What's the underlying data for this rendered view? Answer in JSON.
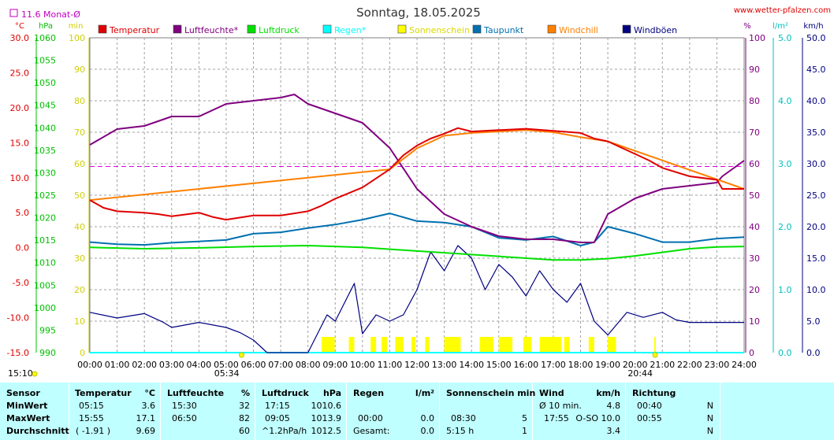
{
  "header": {
    "title": "Sonntag, 18.05.2025",
    "website": "www.wetter-pfalzen.com",
    "monthly_avg_label": "11.6 Monat-Ø"
  },
  "axes": {
    "left_units": [
      "°C",
      "hPa",
      "min"
    ],
    "right_units": [
      "%",
      "l/m²",
      "km/h"
    ],
    "temp_ticks": [
      "30.0",
      "25.0",
      "20.0",
      "15.0",
      "10.0",
      "5.0",
      "0.0",
      "-5.0",
      "-10.0",
      "-15.0"
    ],
    "pressure_ticks": [
      "1060",
      "1055",
      "1050",
      "1045",
      "1040",
      "1035",
      "1030",
      "1025",
      "1020",
      "1015",
      "1010",
      "1005",
      "1000",
      "995",
      "990"
    ],
    "min_ticks": [
      "100",
      "90",
      "80",
      "70",
      "60",
      "50",
      "40",
      "30",
      "20",
      "10",
      "0"
    ],
    "pct_ticks": [
      "100",
      "90",
      "80",
      "70",
      "60",
      "50",
      "40",
      "30",
      "20",
      "10",
      "0"
    ],
    "rain_ticks": [
      "5.0",
      "4.0",
      "3.0",
      "2.0",
      "1.0",
      "0.0"
    ],
    "wind_ticks": [
      "50.0",
      "45.0",
      "40.0",
      "35.0",
      "30.0",
      "25.0",
      "20.0",
      "15.0",
      "10.0",
      "5.0",
      "0.0"
    ],
    "time_ticks": [
      "00:00",
      "01:00",
      "02:00",
      "03:00",
      "04:00",
      "05:00",
      "06:00",
      "07:00",
      "08:00",
      "09:00",
      "10:00",
      "11:00",
      "12:00",
      "13:00",
      "14:00",
      "15:00",
      "16:00",
      "17:00",
      "18:00",
      "19:00",
      "20:00",
      "21:00",
      "22:00",
      "23:00",
      "24:00"
    ],
    "sunrise": "05:34",
    "sunset": "20:44",
    "current_time": "15:10"
  },
  "legend": [
    {
      "label": "Temperatur",
      "color": "#e00000"
    },
    {
      "label": "Luftfeuchte*",
      "color": "#800080"
    },
    {
      "label": "Luftdruck",
      "color": "#00e000"
    },
    {
      "label": "Regen*",
      "color": "#00ffff"
    },
    {
      "label": "Sonnenschein",
      "color": "#ffff00"
    },
    {
      "label": "Taupunkt",
      "color": "#0070b0"
    },
    {
      "label": "Windchill",
      "color": "#ff8000"
    },
    {
      "label": "Windböen",
      "color": "#000080"
    }
  ],
  "chart_data": {
    "type": "line",
    "x_unit": "hour",
    "monthly_avg_temp": 11.6,
    "series": [
      {
        "name": "Temperatur",
        "unit": "°C",
        "x": [
          0,
          0.5,
          1,
          2,
          2.5,
          3,
          4,
          4.5,
          5,
          6,
          7,
          8,
          8.5,
          9,
          10,
          11,
          11.5,
          12,
          12.5,
          13,
          13.5,
          14,
          15,
          16,
          17,
          18,
          18.5,
          19,
          20,
          20.5,
          21,
          22,
          23,
          23.2,
          24
        ],
        "values": [
          6.8,
          5.7,
          5.2,
          5,
          4.8,
          4.5,
          5,
          4.4,
          4,
          4.6,
          4.6,
          5.2,
          6,
          7,
          8.6,
          11.2,
          13.2,
          14.6,
          15.6,
          16.3,
          17.1,
          16.6,
          16.8,
          17,
          16.7,
          16.4,
          15.6,
          15.2,
          13.4,
          12.5,
          11.4,
          10.2,
          9.7,
          8.4,
          8.4
        ]
      },
      {
        "name": "Luftfeuchte*",
        "unit": "%",
        "x": [
          0,
          1,
          2,
          3,
          4,
          5,
          6,
          7,
          7.5,
          8,
          9,
          10,
          11,
          12,
          13,
          14,
          15,
          16,
          17,
          18,
          18.5,
          19,
          20,
          21,
          22,
          23,
          23.2,
          24
        ],
        "values": [
          66,
          71,
          72,
          75,
          75,
          79,
          80,
          81,
          82,
          79,
          76,
          73,
          65,
          52,
          44,
          40,
          37,
          36,
          36,
          35,
          35,
          44,
          49,
          52,
          53,
          54,
          56,
          61
        ]
      },
      {
        "name": "Luftdruck",
        "unit": "hPa",
        "x": [
          0,
          2,
          4,
          6,
          8,
          10,
          12,
          14,
          16,
          17,
          18,
          19,
          20,
          21,
          22,
          23,
          24
        ],
        "values": [
          1013.4,
          1013.1,
          1013.3,
          1013.6,
          1013.8,
          1013.4,
          1012.6,
          1011.8,
          1011.0,
          1010.6,
          1010.6,
          1010.9,
          1011.5,
          1012.3,
          1013.1,
          1013.5,
          1013.6
        ]
      },
      {
        "name": "Regen*",
        "unit": "l/m²",
        "x": [
          0,
          24
        ],
        "values": [
          0,
          0
        ]
      },
      {
        "name": "Taupunkt",
        "unit": "°C",
        "x": [
          0,
          1,
          2,
          3,
          4,
          5,
          6,
          7,
          8,
          9,
          10,
          11,
          12,
          13,
          14,
          15,
          16,
          17,
          18,
          18.5,
          19,
          20,
          21,
          22,
          23,
          24
        ],
        "values": [
          0.8,
          0.5,
          0.4,
          0.7,
          0.9,
          1.1,
          2.0,
          2.2,
          2.8,
          3.3,
          4.0,
          4.9,
          3.8,
          3.6,
          3.0,
          1.4,
          1.1,
          1.6,
          0.3,
          0.8,
          3.0,
          2.0,
          0.8,
          0.8,
          1.3,
          1.5
        ]
      },
      {
        "name": "Windchill",
        "unit": "°C",
        "x": [
          0,
          11,
          12,
          13,
          14,
          15,
          16,
          17,
          18,
          19,
          24
        ],
        "values": [
          6.8,
          11.2,
          14.2,
          16,
          16.4,
          16.6,
          16.8,
          16.5,
          15.8,
          15.2,
          8.4
        ]
      },
      {
        "name": "Windböen",
        "unit": "km/h",
        "x": [
          0,
          1,
          2,
          2.7,
          3,
          4,
          5,
          5.5,
          6,
          6.5,
          7,
          8,
          8.7,
          9,
          9.7,
          10,
          10.5,
          11,
          11.5,
          12,
          12.5,
          13,
          13.5,
          14,
          14.5,
          15,
          15.5,
          16,
          16.5,
          17,
          17.5,
          18,
          18.5,
          19,
          19.7,
          20.3,
          21,
          21.5,
          22,
          23,
          24
        ],
        "values": [
          6.4,
          5.5,
          6.2,
          4.8,
          4,
          4.8,
          4,
          3.2,
          2,
          0,
          0,
          0,
          6,
          5,
          11,
          3,
          6,
          5,
          6,
          10,
          16,
          13,
          17,
          15,
          10,
          14,
          12,
          9,
          13,
          10,
          8,
          11,
          5,
          2.8,
          6.4,
          5.6,
          6.4,
          5.2,
          4.8,
          4.8,
          4.8
        ]
      }
    ],
    "sunshine_periods": [
      [
        8.5,
        8.98
      ],
      [
        9.5,
        9.7
      ],
      [
        10.3,
        10.5
      ],
      [
        10.7,
        10.9
      ],
      [
        11.2,
        11.5
      ],
      [
        11.8,
        11.95
      ],
      [
        12.3,
        12.45
      ],
      [
        13,
        13.6
      ],
      [
        14.3,
        14.8
      ],
      [
        15,
        15.5
      ],
      [
        15.9,
        16.2
      ],
      [
        16.5,
        17.3
      ],
      [
        17.4,
        17.6
      ],
      [
        18.3,
        18.5
      ],
      [
        19,
        19.3
      ],
      [
        20.7,
        20.75
      ]
    ]
  },
  "stats": {
    "headers": {
      "sensor": "Sensor",
      "temp": "Temperatur",
      "temp_unit": "°C",
      "hum": "Luftfeuchte",
      "hum_unit": "%",
      "press": "Luftdruck",
      "press_unit": "hPa",
      "rain": "Regen",
      "rain_unit": "l/m²",
      "sun": "Sonnenschein min",
      "wind": "Wind",
      "wind_unit": "km/h",
      "dir": "Richtung"
    },
    "rows": [
      {
        "label": "MinWert",
        "temp_time": "05:15",
        "temp_val": "3.6",
        "hum_time": "15:30",
        "hum_val": "32",
        "press_time": "17:15",
        "press_val": "1010.6",
        "rain_time": "",
        "rain_val": "",
        "sun_time": "",
        "sun_val": "",
        "wind_time": "Ø 10 min.",
        "wind_val": "4.8",
        "dir_time": "00:40",
        "dir_val": "N"
      },
      {
        "label": "MaxWert",
        "temp_time": "15:55",
        "temp_val": "17.1",
        "hum_time": "06:50",
        "hum_val": "82",
        "press_time": "09:05",
        "press_val": "1013.9",
        "rain_time": "00:00",
        "rain_val": "0.0",
        "sun_time": "08:30",
        "sun_val": "5",
        "wind_time": "17:55",
        "wind_val": "O-SO 10.0",
        "dir_time": "00:55",
        "dir_val": "N"
      },
      {
        "label": "Durchschnitt",
        "temp_time": "( -1.91 )",
        "temp_val": "9.69",
        "hum_time": "",
        "hum_val": "60",
        "press_time": "^1.2hPa/h",
        "press_val": "1012.5",
        "rain_time": "Gesamt:",
        "rain_val": "0.0",
        "sun_time": "5:15 h",
        "sun_val": "1",
        "wind_time": "",
        "wind_val": "3.4",
        "dir_time": "",
        "dir_val": "N"
      }
    ]
  }
}
